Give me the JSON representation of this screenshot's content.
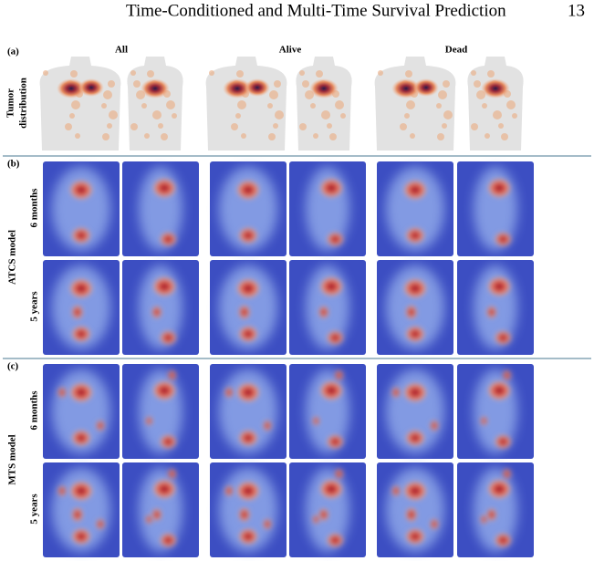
{
  "header": {
    "title": "Time-Conditioned and Multi-Time Survival Prediction",
    "page": "13"
  },
  "figure": {
    "columns": [
      "All",
      "Alive",
      "Dead"
    ],
    "panels": [
      {
        "label": "(a)",
        "row_label": [
          "Tumor",
          "distribution"
        ]
      },
      {
        "label": "(b)",
        "model": "ATCS model",
        "rows": [
          "6 months",
          "5 years"
        ]
      },
      {
        "label": "(c)",
        "model": "MTS model",
        "rows": [
          "6 months",
          "5 years"
        ]
      }
    ]
  }
}
